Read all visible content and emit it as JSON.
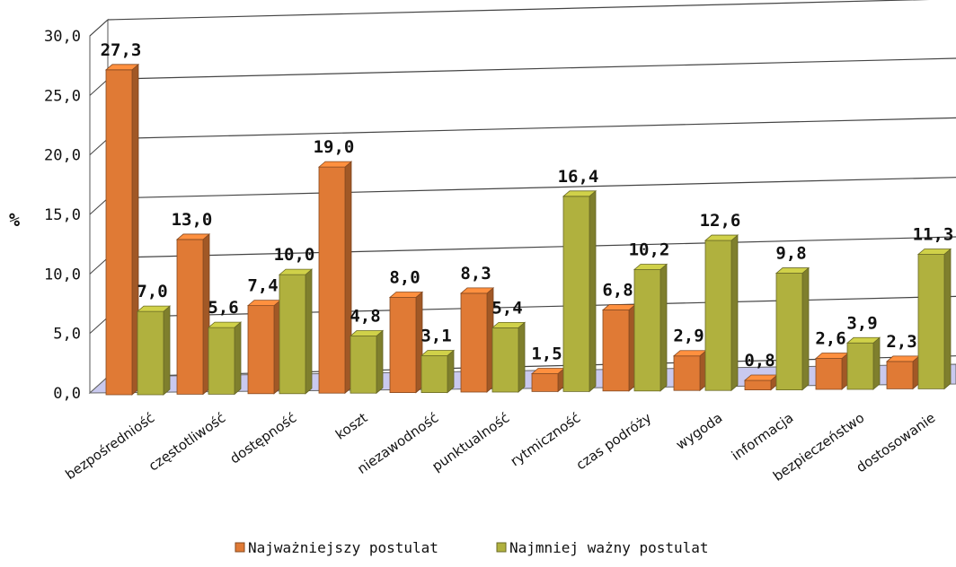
{
  "chart_data": {
    "type": "bar",
    "ylabel": "%",
    "ylim": [
      0,
      30
    ],
    "yticks": [
      "0,0",
      "5,0",
      "10,0",
      "15,0",
      "20,0",
      "25,0",
      "30,0"
    ],
    "categories": [
      "bezpośredniość",
      "częstotliwość",
      "dostępność",
      "koszt",
      "niezawodność",
      "punktualność",
      "rytmiczność",
      "czas podróży",
      "wygoda",
      "informacja",
      "bezpieczeństwo",
      "dostosowanie"
    ],
    "series": [
      {
        "name": "Najważniejszy postulat",
        "color": "#e07a35",
        "values": [
          27.3,
          13.0,
          7.4,
          19.0,
          8.0,
          8.3,
          1.5,
          6.8,
          2.9,
          0.8,
          2.6,
          2.3
        ],
        "labels": [
          "27,3",
          "13,0",
          "7,4",
          "19,0",
          "8,0",
          "8,3",
          "1,5",
          "6,8",
          "2,9",
          "0,8",
          "2,6",
          "2,3"
        ]
      },
      {
        "name": "Najmniej ważny postulat",
        "color": "#b0b13e",
        "values": [
          7.0,
          5.6,
          10.0,
          4.8,
          3.1,
          5.4,
          16.4,
          10.2,
          12.6,
          9.8,
          3.9,
          11.3
        ],
        "labels": [
          "7,0",
          "5,6",
          "10,0",
          "4,8",
          "3,1",
          "5,4",
          "16,4",
          "10,2",
          "12,6",
          "9,8",
          "3,9",
          "11,3"
        ]
      }
    ],
    "grid": true,
    "legend_position": "bottom"
  }
}
